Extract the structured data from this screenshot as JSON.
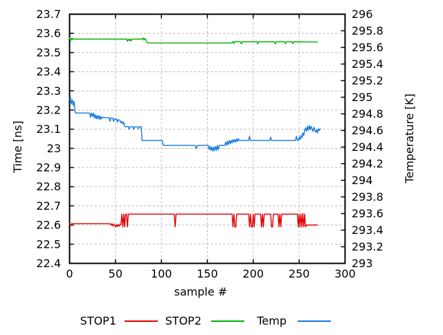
{
  "figure": {
    "background": "#ffffff",
    "text_color": "#000000",
    "grid_color": "#b4b4b4",
    "border_color": "#000000"
  },
  "chart_data": {
    "type": "line",
    "title": "",
    "xlabel": "sample #",
    "ylabel": "Time [ns]",
    "y2label": "Temperature [K]",
    "xlim": [
      0,
      300
    ],
    "ylim": [
      22.4,
      23.7
    ],
    "y2lim": [
      293,
      296
    ],
    "xticks": [
      0,
      50,
      100,
      150,
      200,
      250,
      300
    ],
    "yticks": [
      22.4,
      22.5,
      22.6,
      22.7,
      22.8,
      22.9,
      23,
      23.1,
      23.2,
      23.3,
      23.4,
      23.5,
      23.6,
      23.7
    ],
    "y2ticks": [
      293,
      293.2,
      293.4,
      293.6,
      293.8,
      294,
      294.2,
      294.4,
      294.6,
      294.8,
      295,
      295.2,
      295.4,
      295.6,
      295.8,
      296
    ],
    "grid": true,
    "legend_position": "below",
    "series": [
      {
        "name": "STOP1",
        "color": "#e00000",
        "axis": "y1",
        "points": [
          [
            0,
            22.607
          ],
          [
            1,
            22.597
          ],
          [
            2,
            22.607
          ],
          [
            20,
            22.607
          ],
          [
            44,
            22.607
          ],
          [
            45,
            22.6
          ],
          [
            46,
            22.607
          ],
          [
            47,
            22.595
          ],
          [
            48,
            22.605
          ],
          [
            49,
            22.597
          ],
          [
            50,
            22.59
          ],
          [
            51,
            22.603
          ],
          [
            52,
            22.592
          ],
          [
            53,
            22.603
          ],
          [
            54,
            22.594
          ],
          [
            55,
            22.605
          ],
          [
            56,
            22.603
          ],
          [
            57,
            22.657
          ],
          [
            58,
            22.59
          ],
          [
            59,
            22.657
          ],
          [
            60,
            22.59
          ],
          [
            61,
            22.657
          ],
          [
            62,
            22.657
          ],
          [
            63,
            22.59
          ],
          [
            64,
            22.657
          ],
          [
            114,
            22.657
          ],
          [
            115,
            22.59
          ],
          [
            116,
            22.657
          ],
          [
            177,
            22.657
          ],
          [
            178,
            22.59
          ],
          [
            179,
            22.657
          ],
          [
            180,
            22.59
          ],
          [
            181,
            22.59
          ],
          [
            182,
            22.657
          ],
          [
            195,
            22.657
          ],
          [
            196,
            22.59
          ],
          [
            197,
            22.657
          ],
          [
            198,
            22.59
          ],
          [
            199,
            22.59
          ],
          [
            200,
            22.657
          ],
          [
            201,
            22.59
          ],
          [
            202,
            22.657
          ],
          [
            208,
            22.657
          ],
          [
            209,
            22.59
          ],
          [
            210,
            22.657
          ],
          [
            211,
            22.59
          ],
          [
            212,
            22.657
          ],
          [
            218,
            22.657
          ],
          [
            219,
            22.657
          ],
          [
            220,
            22.59
          ],
          [
            221,
            22.59
          ],
          [
            222,
            22.657
          ],
          [
            227,
            22.657
          ],
          [
            228,
            22.59
          ],
          [
            229,
            22.657
          ],
          [
            230,
            22.59
          ],
          [
            231,
            22.657
          ],
          [
            248,
            22.657
          ],
          [
            249,
            22.59
          ],
          [
            250,
            22.657
          ],
          [
            251,
            22.59
          ],
          [
            252,
            22.657
          ],
          [
            253,
            22.59
          ],
          [
            254,
            22.66
          ],
          [
            255,
            22.59
          ],
          [
            256,
            22.657
          ],
          [
            257,
            22.59
          ],
          [
            258,
            22.6
          ],
          [
            270,
            22.6
          ]
        ]
      },
      {
        "name": "STOP2",
        "color": "#00b000",
        "axis": "y1",
        "points": [
          [
            0,
            23.577
          ],
          [
            1,
            23.562
          ],
          [
            2,
            23.575
          ],
          [
            3,
            23.566
          ],
          [
            4,
            23.574
          ],
          [
            5,
            23.57
          ],
          [
            62,
            23.57
          ],
          [
            63,
            23.559
          ],
          [
            64,
            23.57
          ],
          [
            65,
            23.562
          ],
          [
            66,
            23.57
          ],
          [
            67,
            23.56
          ],
          [
            68,
            23.57
          ],
          [
            79,
            23.57
          ],
          [
            80,
            23.576
          ],
          [
            81,
            23.565
          ],
          [
            82,
            23.574
          ],
          [
            83,
            23.568
          ],
          [
            84,
            23.556
          ],
          [
            85,
            23.55
          ],
          [
            177,
            23.55
          ],
          [
            178,
            23.558
          ],
          [
            179,
            23.547
          ],
          [
            180,
            23.557
          ],
          [
            186,
            23.556
          ],
          [
            187,
            23.545
          ],
          [
            188,
            23.556
          ],
          [
            204,
            23.556
          ],
          [
            205,
            23.545
          ],
          [
            206,
            23.556
          ],
          [
            223,
            23.556
          ],
          [
            224,
            23.545
          ],
          [
            225,
            23.556
          ],
          [
            234,
            23.556
          ],
          [
            235,
            23.546
          ],
          [
            236,
            23.556
          ],
          [
            242,
            23.556
          ],
          [
            243,
            23.546
          ],
          [
            244,
            23.556
          ],
          [
            270,
            23.555
          ]
        ]
      },
      {
        "name": "Temp",
        "color": "#1478dc",
        "axis": "y2",
        "points": [
          [
            0,
            294.97
          ],
          [
            1,
            295.0
          ],
          [
            2,
            294.92
          ],
          [
            3,
            294.97
          ],
          [
            4,
            294.9
          ],
          [
            5,
            294.95
          ],
          [
            6,
            294.82
          ],
          [
            7,
            294.81
          ],
          [
            22,
            294.81
          ],
          [
            23,
            294.76
          ],
          [
            24,
            294.81
          ],
          [
            25,
            294.77
          ],
          [
            26,
            294.81
          ],
          [
            27,
            294.75
          ],
          [
            28,
            294.79
          ],
          [
            29,
            294.74
          ],
          [
            30,
            294.78
          ],
          [
            31,
            294.74
          ],
          [
            32,
            294.78
          ],
          [
            33,
            294.73
          ],
          [
            34,
            294.77
          ],
          [
            35,
            294.74
          ],
          [
            36,
            294.76
          ],
          [
            38,
            294.755
          ],
          [
            43,
            294.755
          ],
          [
            44,
            294.71
          ],
          [
            45,
            294.75
          ],
          [
            47,
            294.75
          ],
          [
            48,
            294.71
          ],
          [
            49,
            294.74
          ],
          [
            51,
            294.74
          ],
          [
            52,
            294.7
          ],
          [
            53,
            294.73
          ],
          [
            55,
            294.72
          ],
          [
            56,
            294.69
          ],
          [
            57,
            294.71
          ],
          [
            58,
            294.68
          ],
          [
            59,
            294.7
          ],
          [
            60,
            294.645
          ],
          [
            64,
            294.645
          ],
          [
            65,
            294.615
          ],
          [
            66,
            294.645
          ],
          [
            69,
            294.645
          ],
          [
            70,
            294.615
          ],
          [
            71,
            294.645
          ],
          [
            74,
            294.645
          ],
          [
            75,
            294.62
          ],
          [
            76,
            294.645
          ],
          [
            78,
            294.645
          ],
          [
            79,
            294.48
          ],
          [
            101,
            294.48
          ],
          [
            102,
            294.42
          ],
          [
            137,
            294.42
          ],
          [
            138,
            294.38
          ],
          [
            139,
            294.42
          ],
          [
            151,
            294.42
          ],
          [
            152,
            294.37
          ],
          [
            153,
            294.41
          ],
          [
            154,
            294.36
          ],
          [
            155,
            294.4
          ],
          [
            156,
            294.35
          ],
          [
            157,
            294.4
          ],
          [
            158,
            294.36
          ],
          [
            159,
            294.41
          ],
          [
            160,
            294.36
          ],
          [
            161,
            294.42
          ],
          [
            162,
            294.37
          ],
          [
            163,
            294.42
          ],
          [
            169,
            294.42
          ],
          [
            170,
            294.46
          ],
          [
            171,
            294.42
          ],
          [
            172,
            294.47
          ],
          [
            173,
            294.43
          ],
          [
            174,
            294.48
          ],
          [
            175,
            294.44
          ],
          [
            176,
            294.48
          ],
          [
            177,
            294.45
          ],
          [
            178,
            294.49
          ],
          [
            179,
            294.46
          ],
          [
            180,
            294.49
          ],
          [
            181,
            294.46
          ],
          [
            182,
            294.5
          ],
          [
            183,
            294.47
          ],
          [
            184,
            294.5
          ],
          [
            185,
            294.48
          ],
          [
            195,
            294.48
          ],
          [
            196,
            294.53
          ],
          [
            197,
            294.48
          ],
          [
            218,
            294.48
          ],
          [
            219,
            294.52
          ],
          [
            220,
            294.48
          ],
          [
            246,
            294.48
          ],
          [
            247,
            294.53
          ],
          [
            248,
            294.48
          ],
          [
            249,
            294.48
          ],
          [
            250,
            294.52
          ],
          [
            251,
            294.49
          ],
          [
            252,
            294.54
          ],
          [
            253,
            294.51
          ],
          [
            254,
            294.57
          ],
          [
            255,
            294.54
          ],
          [
            256,
            294.6
          ],
          [
            257,
            294.63
          ],
          [
            258,
            294.59
          ],
          [
            259,
            294.65
          ],
          [
            260,
            294.6
          ],
          [
            261,
            294.66
          ],
          [
            262,
            294.61
          ],
          [
            263,
            294.65
          ],
          [
            264,
            294.62
          ],
          [
            265,
            294.59
          ],
          [
            266,
            294.64
          ],
          [
            267,
            294.6
          ],
          [
            268,
            294.58
          ],
          [
            269,
            294.61
          ],
          [
            270,
            294.57
          ],
          [
            271,
            294.62
          ],
          [
            272,
            294.6
          ],
          [
            273,
            294.62
          ]
        ]
      }
    ]
  },
  "legend": {
    "items": [
      {
        "label": "STOP1"
      },
      {
        "label": "STOP2"
      },
      {
        "label": "Temp"
      }
    ]
  }
}
